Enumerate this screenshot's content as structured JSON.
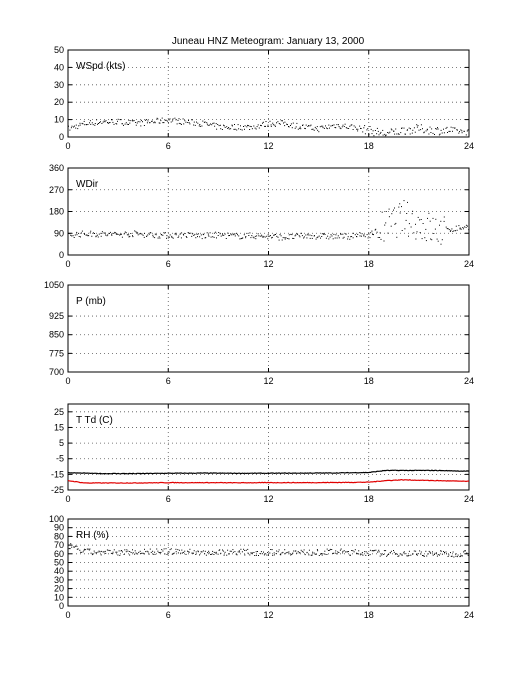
{
  "title": "Juneau HNZ Meteogram:    January 13, 2000",
  "colors": {
    "black": "#000000",
    "red": "#e00000",
    "grid": "#555555"
  },
  "chart_data": [
    {
      "type": "scatter",
      "label": "WSpd (kts)",
      "xlim": [
        0,
        24
      ],
      "xticks": [
        0,
        6,
        12,
        18,
        24
      ],
      "ylim": [
        0,
        50
      ],
      "yticks": [
        0,
        10,
        20,
        30,
        40,
        50
      ],
      "grid": true,
      "series": [
        {
          "color": "#000000",
          "x": [
            0,
            1,
            2,
            3,
            4,
            5,
            6,
            7,
            8,
            9,
            10,
            11,
            12,
            13,
            14,
            15,
            16,
            17,
            18,
            19,
            20,
            21,
            22,
            23,
            24
          ],
          "y": [
            5,
            8,
            9,
            9,
            8,
            9,
            10,
            9,
            8,
            6,
            6,
            6,
            8,
            8,
            6,
            5,
            7,
            6,
            4,
            2,
            4,
            5,
            4,
            4,
            3
          ]
        }
      ]
    },
    {
      "type": "scatter",
      "label": "WDir",
      "xlim": [
        0,
        24
      ],
      "xticks": [
        0,
        6,
        12,
        18,
        24
      ],
      "ylim": [
        0,
        360
      ],
      "yticks": [
        0,
        90,
        180,
        270,
        360
      ],
      "grid": true,
      "series": [
        {
          "color": "#000000",
          "x": [
            0,
            1,
            2,
            3,
            4,
            5,
            6,
            7,
            8,
            9,
            10,
            11,
            12,
            13,
            14,
            15,
            16,
            17,
            18,
            19,
            20,
            21,
            22,
            23,
            24
          ],
          "y": [
            85,
            90,
            88,
            87,
            90,
            85,
            82,
            85,
            80,
            85,
            80,
            82,
            78,
            75,
            80,
            80,
            78,
            80,
            85,
            120,
            160,
            130,
            100,
            110,
            120
          ]
        }
      ]
    },
    {
      "type": "scatter",
      "label": "P (mb)",
      "xlim": [
        0,
        24
      ],
      "xticks": [
        0,
        6,
        12,
        18,
        24
      ],
      "ylim": [
        700,
        1050
      ],
      "yticks": [
        700,
        775,
        850,
        925,
        1050
      ],
      "grid": true,
      "series": []
    },
    {
      "type": "line",
      "label": "T Td (C)",
      "xlim": [
        0,
        24
      ],
      "xticks": [
        0,
        6,
        12,
        18,
        24
      ],
      "ylim": [
        -25,
        30
      ],
      "yticks": [
        -25,
        -15,
        -5,
        5,
        15,
        25
      ],
      "grid": true,
      "series": [
        {
          "color": "#000000",
          "x": [
            0,
            2,
            4,
            6,
            8,
            10,
            12,
            14,
            16,
            18,
            19,
            20,
            22,
            24
          ],
          "y": [
            -14,
            -14.5,
            -14.5,
            -14.3,
            -14.2,
            -14.3,
            -14.3,
            -14.2,
            -14.1,
            -13.8,
            -12.5,
            -12.5,
            -12.5,
            -13
          ]
        },
        {
          "color": "#e00000",
          "x": [
            0,
            1,
            2,
            4,
            6,
            8,
            10,
            12,
            14,
            16,
            18,
            19,
            20,
            22,
            24
          ],
          "y": [
            -19,
            -20.5,
            -20.5,
            -20.5,
            -20.3,
            -20.3,
            -20.4,
            -20.3,
            -20.3,
            -20.2,
            -20,
            -19,
            -18.5,
            -19,
            -19.5
          ]
        }
      ]
    },
    {
      "type": "scatter",
      "label": "RH (%)",
      "xlim": [
        0,
        24
      ],
      "xticks": [
        0,
        6,
        12,
        18,
        24
      ],
      "ylim": [
        0,
        100
      ],
      "yticks": [
        0,
        10,
        20,
        30,
        40,
        50,
        60,
        70,
        80,
        90,
        100
      ],
      "grid": true,
      "series": [
        {
          "color": "#000000",
          "x": [
            0,
            0.5,
            1,
            2,
            3,
            4,
            5,
            6,
            7,
            8,
            9,
            10,
            11,
            12,
            13,
            14,
            15,
            16,
            17,
            18,
            19,
            20,
            21,
            22,
            23,
            24
          ],
          "y": [
            70,
            66,
            63,
            62,
            62,
            63,
            63,
            63,
            63,
            62,
            62,
            63,
            62,
            62,
            63,
            62,
            62,
            63,
            62,
            62,
            61,
            61,
            61,
            61,
            60,
            62
          ]
        }
      ]
    }
  ]
}
